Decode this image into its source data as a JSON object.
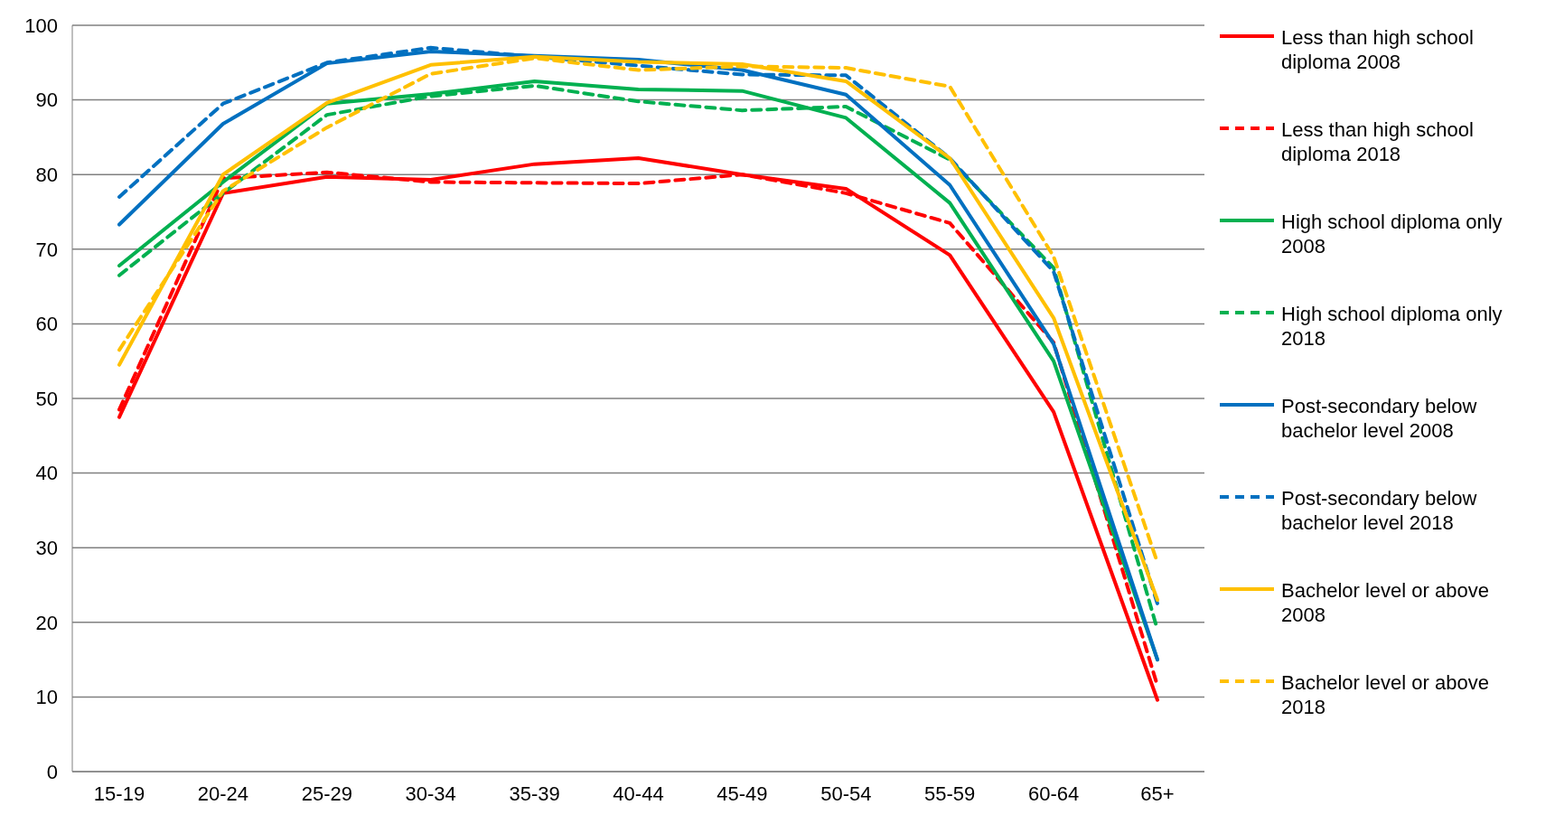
{
  "chart_data": {
    "type": "line",
    "categories": [
      "15-19",
      "20-24",
      "25-29",
      "30-34",
      "35-39",
      "40-44",
      "45-49",
      "50-54",
      "55-59",
      "60-64",
      "65+"
    ],
    "series": [
      {
        "name": "Less than high school diploma 2008",
        "color": "#ff0000",
        "line_style": "solid",
        "values": [
          47.5,
          77.5,
          79.7,
          79.3,
          81.4,
          82.2,
          80,
          78.1,
          69.2,
          48.2,
          9.6
        ]
      },
      {
        "name": "Less than high school diploma 2018",
        "color": "#ff0000",
        "line_style": "dashed",
        "values": [
          48.5,
          79.5,
          80.3,
          79,
          78.9,
          78.8,
          80,
          77.5,
          73.5,
          57.5,
          11.5
        ]
      },
      {
        "name": "High school diploma only 2008",
        "color": "#00b050",
        "line_style": "solid",
        "values": [
          67.8,
          79,
          89.5,
          90.8,
          92.5,
          91.4,
          91.2,
          87.6,
          76.2,
          55,
          15
        ]
      },
      {
        "name": "High school diploma only 2018",
        "color": "#00b050",
        "line_style": "dashed",
        "values": [
          66.5,
          77.5,
          88,
          90.5,
          91.9,
          89.8,
          88.6,
          89.1,
          82,
          67.5,
          19
        ]
      },
      {
        "name": "Post-secondary below bachelor level 2008",
        "color": "#0070c0",
        "line_style": "solid",
        "values": [
          73.3,
          86.8,
          94.9,
          96.5,
          95.9,
          95.4,
          94,
          90.7,
          78.6,
          57.3,
          15
        ]
      },
      {
        "name": "Post-secondary below bachelor level 2018",
        "color": "#0070c0",
        "line_style": "dashed",
        "values": [
          77,
          89.5,
          95,
          97,
          95.8,
          94.6,
          93.4,
          93.3,
          82.2,
          67,
          22.5
        ]
      },
      {
        "name": "Bachelor level or above 2008",
        "color": "#ffc000",
        "line_style": "solid",
        "values": [
          54.5,
          80,
          89.6,
          94.7,
          95.8,
          95.1,
          94.8,
          92.5,
          82.2,
          60.8,
          23
        ]
      },
      {
        "name": "Bachelor level or above 2018",
        "color": "#ffc000",
        "line_style": "dashed",
        "values": [
          56.5,
          77.8,
          86.3,
          93.5,
          95.6,
          94,
          94.5,
          94.3,
          91.8,
          69,
          28
        ]
      }
    ],
    "ylim": [
      0,
      100
    ],
    "yticks": [
      0,
      10,
      20,
      30,
      40,
      50,
      60,
      70,
      80,
      90,
      100
    ],
    "grid": "y",
    "legend": "right",
    "marker": "none"
  }
}
